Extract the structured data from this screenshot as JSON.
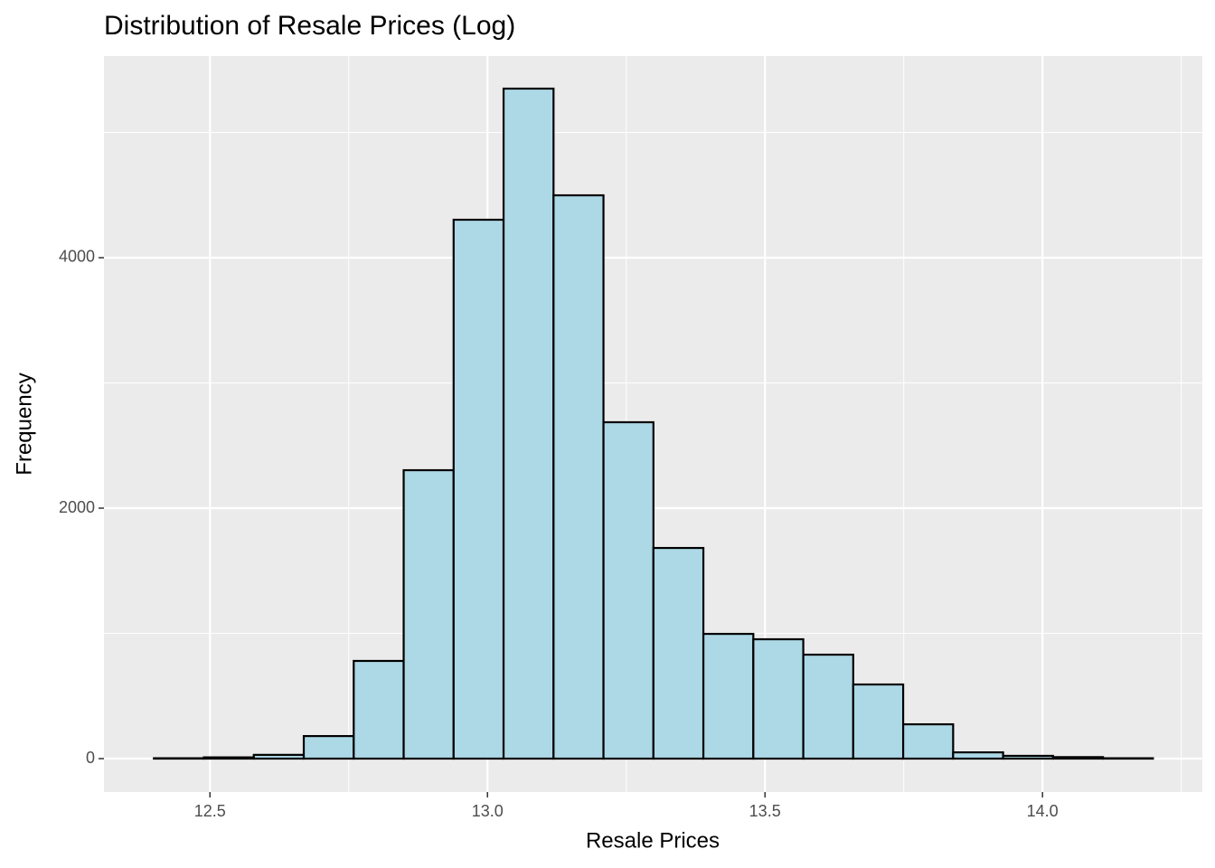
{
  "chart_data": {
    "type": "histogram",
    "title": "Distribution of Resale Prices (Log)",
    "x_label": "Resale Prices",
    "y_label": "Frequency",
    "bins": [
      12.399,
      12.489,
      12.579,
      12.669,
      12.759,
      12.849,
      12.939,
      13.029,
      13.119,
      13.209,
      13.299,
      13.389,
      13.479,
      13.569,
      13.659,
      13.749,
      13.839,
      13.929,
      14.019,
      14.109,
      14.199
    ],
    "values": [
      3,
      10,
      30,
      180,
      780,
      2303,
      4303,
      5350,
      4498,
      2686,
      1682,
      996,
      953,
      830,
      592,
      274,
      50,
      22,
      12,
      3
    ],
    "color": "#add8e6",
    "edge_color": "#000000",
    "xlim": [
      12.309,
      14.288
    ],
    "ylim": [
      -267,
      5610
    ],
    "xticks": [
      12.5,
      {
        "value": 13,
        "label": "13.0"
      },
      13.5,
      {
        "value": 14,
        "label": "14.0"
      }
    ],
    "yticks": [
      0,
      2000,
      4000
    ],
    "x_minor_grid": [
      12.75,
      13.25,
      13.75,
      14.25
    ],
    "y_minor_grid": [
      1000,
      3000,
      5000
    ],
    "grid": true
  }
}
